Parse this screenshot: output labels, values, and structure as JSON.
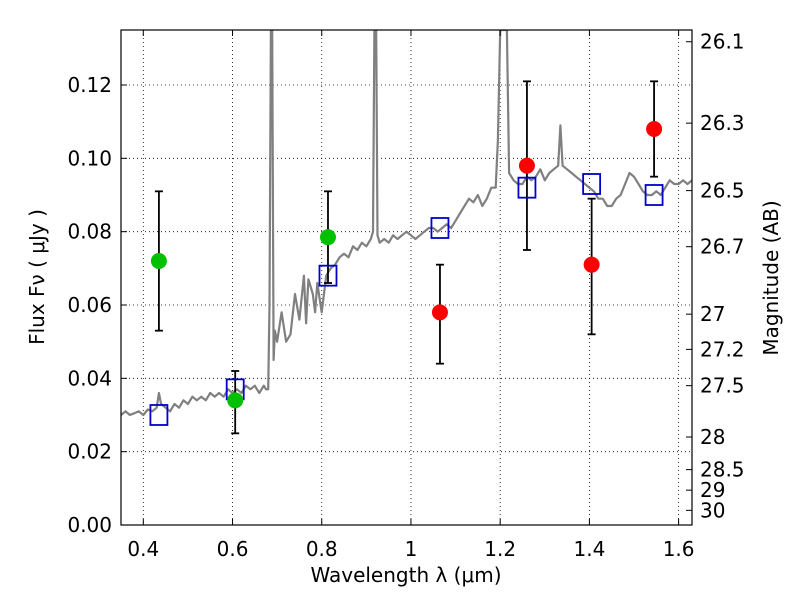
{
  "chart_data": {
    "type": "scatter",
    "xlabel": "Wavelength  λ (μm)",
    "ylabel": "Flux  Fν  ( μJy )",
    "ylabel_right": "Magnitude (AB)",
    "xlim": [
      0.35,
      1.63
    ],
    "ylim": [
      0.0,
      0.135
    ],
    "grid": true,
    "colors": {
      "spectrum": "#808080",
      "observed_blue_band": "#00c000",
      "observed_red_band": "#ff0000",
      "model_photometry": "#0000cc",
      "errorbar": "#000000"
    },
    "x_ticks": [
      {
        "value": 0.4,
        "label": "0.4"
      },
      {
        "value": 0.6,
        "label": "0.6"
      },
      {
        "value": 0.8,
        "label": "0.8"
      },
      {
        "value": 1.0,
        "label": "1"
      },
      {
        "value": 1.2,
        "label": "1.2"
      },
      {
        "value": 1.4,
        "label": "1.4"
      },
      {
        "value": 1.6,
        "label": "1.6"
      }
    ],
    "y_ticks": [
      {
        "value": 0.0,
        "label": "0.00"
      },
      {
        "value": 0.02,
        "label": "0.02"
      },
      {
        "value": 0.04,
        "label": "0.04"
      },
      {
        "value": 0.06,
        "label": "0.06"
      },
      {
        "value": 0.08,
        "label": "0.08"
      },
      {
        "value": 0.1,
        "label": "0.10"
      },
      {
        "value": 0.12,
        "label": "0.12"
      }
    ],
    "y_right_ticks": [
      {
        "flux": 0.1318,
        "label": "26.1"
      },
      {
        "flux": 0.1096,
        "label": "26.3"
      },
      {
        "flux": 0.0912,
        "label": "26.5"
      },
      {
        "flux": 0.0759,
        "label": "26.7"
      },
      {
        "flux": 0.0575,
        "label": "27"
      },
      {
        "flux": 0.0479,
        "label": "27.2"
      },
      {
        "flux": 0.038,
        "label": "27.5"
      },
      {
        "flux": 0.024,
        "label": "28"
      },
      {
        "flux": 0.0151,
        "label": "28.5"
      },
      {
        "flux": 0.0095,
        "label": "29"
      },
      {
        "flux": 0.004,
        "label": "30"
      }
    ],
    "observed_blue_band": [
      {
        "x": 0.435,
        "y": 0.072,
        "ylo": 0.053,
        "yhi": 0.091
      },
      {
        "x": 0.606,
        "y": 0.034,
        "ylo": 0.025,
        "yhi": 0.042
      },
      {
        "x": 0.814,
        "y": 0.0785,
        "ylo": 0.066,
        "yhi": 0.091
      }
    ],
    "observed_red_band": [
      {
        "x": 1.065,
        "y": 0.058,
        "ylo": 0.044,
        "yhi": 0.071
      },
      {
        "x": 1.26,
        "y": 0.098,
        "ylo": 0.075,
        "yhi": 0.121
      },
      {
        "x": 1.405,
        "y": 0.071,
        "ylo": 0.052,
        "yhi": 0.089
      },
      {
        "x": 1.545,
        "y": 0.108,
        "ylo": 0.095,
        "yhi": 0.121
      }
    ],
    "model_photometry": [
      {
        "x": 0.435,
        "y": 0.03
      },
      {
        "x": 0.606,
        "y": 0.037
      },
      {
        "x": 0.814,
        "y": 0.068
      },
      {
        "x": 1.065,
        "y": 0.081
      },
      {
        "x": 1.26,
        "y": 0.092
      },
      {
        "x": 1.405,
        "y": 0.093
      },
      {
        "x": 1.545,
        "y": 0.09
      }
    ],
    "spectrum": [
      [
        0.35,
        0.03
      ],
      [
        0.36,
        0.031
      ],
      [
        0.37,
        0.03
      ],
      [
        0.38,
        0.0305
      ],
      [
        0.39,
        0.031
      ],
      [
        0.4,
        0.03
      ],
      [
        0.41,
        0.0315
      ],
      [
        0.42,
        0.031
      ],
      [
        0.43,
        0.032
      ],
      [
        0.435,
        0.036
      ],
      [
        0.44,
        0.033
      ],
      [
        0.45,
        0.032
      ],
      [
        0.46,
        0.031
      ],
      [
        0.47,
        0.033
      ],
      [
        0.48,
        0.032
      ],
      [
        0.49,
        0.034
      ],
      [
        0.5,
        0.033
      ],
      [
        0.51,
        0.035
      ],
      [
        0.52,
        0.034
      ],
      [
        0.53,
        0.035
      ],
      [
        0.54,
        0.034
      ],
      [
        0.55,
        0.036
      ],
      [
        0.56,
        0.035
      ],
      [
        0.57,
        0.036
      ],
      [
        0.58,
        0.035
      ],
      [
        0.59,
        0.037
      ],
      [
        0.6,
        0.036
      ],
      [
        0.61,
        0.037
      ],
      [
        0.62,
        0.036
      ],
      [
        0.63,
        0.038
      ],
      [
        0.64,
        0.037
      ],
      [
        0.65,
        0.038
      ],
      [
        0.66,
        0.036
      ],
      [
        0.67,
        0.038
      ],
      [
        0.675,
        0.037
      ],
      [
        0.68,
        0.037
      ],
      [
        0.683,
        0.06
      ],
      [
        0.686,
        0.135
      ],
      [
        0.689,
        0.135
      ],
      [
        0.692,
        0.045
      ],
      [
        0.695,
        0.053
      ],
      [
        0.7,
        0.05
      ],
      [
        0.71,
        0.058
      ],
      [
        0.72,
        0.05
      ],
      [
        0.73,
        0.052
      ],
      [
        0.74,
        0.063
      ],
      [
        0.75,
        0.056
      ],
      [
        0.76,
        0.068
      ],
      [
        0.765,
        0.055
      ],
      [
        0.77,
        0.067
      ],
      [
        0.78,
        0.063
      ],
      [
        0.785,
        0.058
      ],
      [
        0.79,
        0.066
      ],
      [
        0.8,
        0.058
      ],
      [
        0.81,
        0.068
      ],
      [
        0.82,
        0.07
      ],
      [
        0.83,
        0.071
      ],
      [
        0.84,
        0.073
      ],
      [
        0.85,
        0.074
      ],
      [
        0.86,
        0.073
      ],
      [
        0.87,
        0.076
      ],
      [
        0.88,
        0.075
      ],
      [
        0.89,
        0.077
      ],
      [
        0.9,
        0.076
      ],
      [
        0.91,
        0.078
      ],
      [
        0.915,
        0.08
      ],
      [
        0.918,
        0.135
      ],
      [
        0.922,
        0.135
      ],
      [
        0.925,
        0.079
      ],
      [
        0.93,
        0.077
      ],
      [
        0.94,
        0.078
      ],
      [
        0.95,
        0.077
      ],
      [
        0.96,
        0.079
      ],
      [
        0.97,
        0.078
      ],
      [
        0.98,
        0.079
      ],
      [
        0.99,
        0.08
      ],
      [
        1.0,
        0.079
      ],
      [
        1.01,
        0.078
      ],
      [
        1.02,
        0.079
      ],
      [
        1.03,
        0.08
      ],
      [
        1.04,
        0.081
      ],
      [
        1.05,
        0.081
      ],
      [
        1.06,
        0.08
      ],
      [
        1.07,
        0.081
      ],
      [
        1.08,
        0.082
      ],
      [
        1.09,
        0.081
      ],
      [
        1.1,
        0.083
      ],
      [
        1.11,
        0.085
      ],
      [
        1.12,
        0.087
      ],
      [
        1.13,
        0.089
      ],
      [
        1.14,
        0.088
      ],
      [
        1.15,
        0.09
      ],
      [
        1.16,
        0.087
      ],
      [
        1.17,
        0.089
      ],
      [
        1.18,
        0.092
      ],
      [
        1.19,
        0.092
      ],
      [
        1.195,
        0.105
      ],
      [
        1.2,
        0.135
      ],
      [
        1.215,
        0.135
      ],
      [
        1.22,
        0.096
      ],
      [
        1.23,
        0.094
      ],
      [
        1.24,
        0.093
      ],
      [
        1.25,
        0.093
      ],
      [
        1.26,
        0.095
      ],
      [
        1.27,
        0.094
      ],
      [
        1.28,
        0.095
      ],
      [
        1.29,
        0.097
      ],
      [
        1.3,
        0.094
      ],
      [
        1.31,
        0.096
      ],
      [
        1.32,
        0.097
      ],
      [
        1.33,
        0.098
      ],
      [
        1.335,
        0.109
      ],
      [
        1.34,
        0.098
      ],
      [
        1.35,
        0.097
      ],
      [
        1.36,
        0.096
      ],
      [
        1.37,
        0.095
      ],
      [
        1.38,
        0.094
      ],
      [
        1.39,
        0.093
      ],
      [
        1.4,
        0.092
      ],
      [
        1.41,
        0.091
      ],
      [
        1.42,
        0.089
      ],
      [
        1.43,
        0.089
      ],
      [
        1.44,
        0.087
      ],
      [
        1.45,
        0.087
      ],
      [
        1.46,
        0.089
      ],
      [
        1.47,
        0.09
      ],
      [
        1.48,
        0.093
      ],
      [
        1.49,
        0.096
      ],
      [
        1.5,
        0.095
      ],
      [
        1.51,
        0.093
      ],
      [
        1.52,
        0.091
      ],
      [
        1.53,
        0.09
      ],
      [
        1.54,
        0.09
      ],
      [
        1.55,
        0.091
      ],
      [
        1.56,
        0.09
      ],
      [
        1.57,
        0.092
      ],
      [
        1.58,
        0.094
      ],
      [
        1.59,
        0.093
      ],
      [
        1.6,
        0.093
      ],
      [
        1.61,
        0.094
      ],
      [
        1.62,
        0.093
      ],
      [
        1.63,
        0.094
      ]
    ]
  }
}
